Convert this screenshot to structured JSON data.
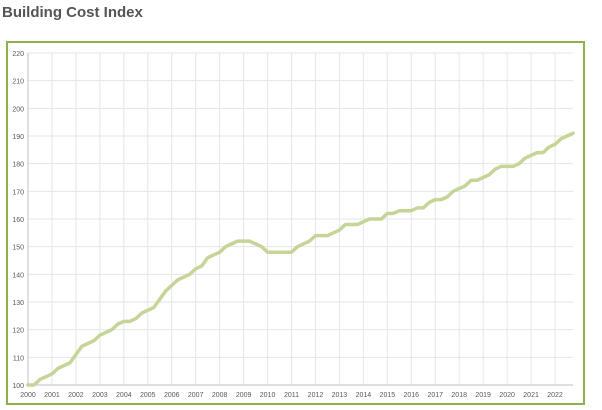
{
  "page": {
    "title": "Building Cost Index"
  },
  "colors": {
    "line": "#c5d597",
    "border": "#8cb14d",
    "grid": "#e6e6e6",
    "axis": "#bfbfbf",
    "tick_text": "#595959"
  },
  "chart_data": {
    "type": "line",
    "title": "",
    "xlabel": "",
    "ylabel": "",
    "xlim": [
      2000,
      2022.75
    ],
    "ylim": [
      100,
      220
    ],
    "yticks": [
      100,
      110,
      120,
      130,
      140,
      150,
      160,
      170,
      180,
      190,
      200,
      210,
      220
    ],
    "xtick_labels": [
      "2000",
      "2001",
      "2002",
      "2003",
      "2004",
      "2005",
      "2006",
      "2007",
      "2008",
      "2009",
      "2010",
      "2011",
      "2012",
      "2013",
      "2014",
      "2015",
      "2016",
      "2017",
      "2018",
      "2019",
      "2020",
      "2021",
      "2022"
    ],
    "grid": true,
    "legend": "none",
    "series": [
      {
        "x": [
          2000,
          2000.25,
          2000.5,
          2000.75,
          2001,
          2001.25,
          2001.5,
          2001.75,
          2002,
          2002.25,
          2002.5,
          2002.75,
          2003,
          2003.25,
          2003.5,
          2003.75,
          2004,
          2004.25,
          2004.5,
          2004.75,
          2005,
          2005.25,
          2005.5,
          2005.75,
          2006,
          2006.25,
          2006.5,
          2006.75,
          2007,
          2007.25,
          2007.5,
          2007.75,
          2008,
          2008.25,
          2008.5,
          2008.75,
          2009,
          2009.25,
          2009.5,
          2009.75,
          2010,
          2010.25,
          2010.5,
          2010.75,
          2011,
          2011.25,
          2011.5,
          2011.75,
          2012,
          2012.25,
          2012.5,
          2012.75,
          2013,
          2013.25,
          2013.5,
          2013.75,
          2014,
          2014.25,
          2014.5,
          2014.75,
          2015,
          2015.25,
          2015.5,
          2015.75,
          2016,
          2016.25,
          2016.5,
          2016.75,
          2017,
          2017.25,
          2017.5,
          2017.75,
          2018,
          2018.25,
          2018.5,
          2018.75,
          2019,
          2019.25,
          2019.5,
          2019.75,
          2020,
          2020.25,
          2020.5,
          2020.75,
          2021,
          2021.25,
          2021.5,
          2021.75,
          2022,
          2022.25,
          2022.5,
          2022.75
        ],
        "values": [
          100,
          100,
          102,
          103,
          104,
          106,
          107,
          108,
          111,
          114,
          115,
          116,
          118,
          119,
          120,
          122,
          123,
          123,
          124,
          126,
          127,
          128,
          131,
          134,
          136,
          138,
          139,
          140,
          142,
          143,
          146,
          147,
          148,
          150,
          151,
          152,
          152,
          152,
          151,
          150,
          148,
          148,
          148,
          148,
          148,
          150,
          151,
          152,
          154,
          154,
          154,
          155,
          156,
          158,
          158,
          158,
          159,
          160,
          160,
          160,
          162,
          162,
          163,
          163,
          163,
          164,
          164,
          166,
          167,
          167,
          168,
          170,
          171,
          172,
          174,
          174,
          175,
          176,
          178,
          179,
          179,
          179,
          180,
          182,
          183,
          184,
          184,
          186,
          187,
          189,
          190,
          191
        ]
      }
    ]
  }
}
